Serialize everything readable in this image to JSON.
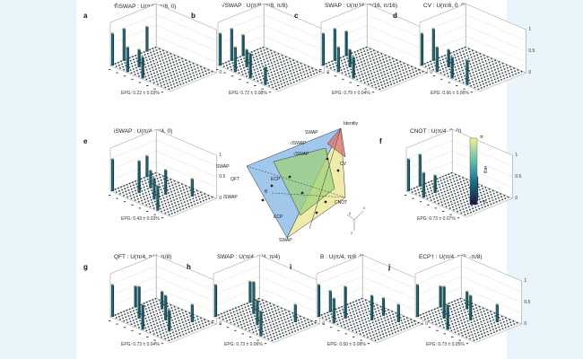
{
  "panels": [
    {
      "id": "a",
      "title": "∜iSWAP : U",
      "params": "(π/8, π/8, 0)",
      "epg": "EPG: 0.22 ± 0.03%",
      "peaks": [
        [
          0,
          0
        ],
        [
          0,
          1
        ],
        [
          1,
          0
        ],
        [
          1,
          1
        ],
        [
          2,
          0
        ],
        [
          0,
          3
        ]
      ]
    },
    {
      "id": "b",
      "title": "√SWAP : U",
      "params": "(π/8, π/8, π/8)",
      "epg": "EPG: 0.72 ± 0.08%",
      "peaks": [
        [
          0,
          0
        ],
        [
          0,
          1
        ],
        [
          1,
          0
        ],
        [
          1,
          1
        ],
        [
          0,
          2
        ],
        [
          2,
          0
        ],
        [
          3,
          0
        ]
      ]
    },
    {
      "id": "c",
      "title": "SWAP : U",
      "params": "(π/16, π/16, π/16)",
      "epg": "EPG: 0.79 ± 0.04%",
      "peaks": [
        [
          0,
          0
        ],
        [
          0,
          1
        ],
        [
          1,
          0
        ],
        [
          1,
          1
        ],
        [
          2,
          0
        ],
        [
          0,
          2
        ]
      ]
    },
    {
      "id": "d",
      "title": "CV : U",
      "params": "(π/8, 0, 0)",
      "epg": "EPG: 0.66 ± 0.06%",
      "peaks": [
        [
          0,
          0
        ],
        [
          0,
          1
        ],
        [
          1,
          0
        ],
        [
          1,
          1
        ],
        [
          2,
          0
        ],
        [
          3,
          0
        ]
      ]
    },
    {
      "id": "e",
      "title": "iSWAP : U",
      "params": "(π/4, π/4, 0)",
      "epg": "EPG: 0.43 ± 0.03%",
      "peaks": [
        [
          0,
          0
        ],
        [
          1,
          1
        ],
        [
          2,
          2
        ],
        [
          3,
          3
        ],
        [
          0,
          3
        ],
        [
          3,
          0
        ],
        [
          1,
          2
        ],
        [
          2,
          1
        ]
      ]
    },
    {
      "id": "f",
      "title": "CNOT : U",
      "params": "(π/4, 0, 0)",
      "epg": "EPG: 0.73 ± 0.07%",
      "peaks": [
        [
          0,
          0
        ],
        [
          0,
          1
        ],
        [
          1,
          0
        ],
        [
          1,
          1
        ],
        [
          2,
          3
        ],
        [
          3,
          2
        ]
      ]
    },
    {
      "id": "g",
      "title": "QFT : U",
      "params": "(π/4, π/4, π/8)",
      "epg": "EPG: 0.73 ± 0.04%",
      "peaks": [
        [
          0,
          0
        ],
        [
          1,
          1
        ],
        [
          2,
          2
        ],
        [
          3,
          3
        ],
        [
          0,
          2
        ],
        [
          2,
          0
        ],
        [
          1,
          3
        ],
        [
          3,
          1
        ]
      ]
    },
    {
      "id": "h",
      "title": "SWAP : U",
      "params": "(π/4, π/4, π/4)",
      "epg": "EPG: 0.73 ± 0.06%",
      "peaks": [
        [
          0,
          0
        ],
        [
          1,
          2
        ],
        [
          2,
          1
        ],
        [
          3,
          3
        ],
        [
          0,
          3
        ],
        [
          3,
          0
        ]
      ]
    },
    {
      "id": "i",
      "title": "B : U",
      "params": "(π/4, π/8, 0)",
      "epg": "EPG: 0.50 ± 0.08%",
      "peaks": [
        [
          0,
          0
        ],
        [
          1,
          1
        ],
        [
          2,
          2
        ],
        [
          3,
          3
        ],
        [
          0,
          1
        ],
        [
          1,
          0
        ],
        [
          2,
          3
        ]
      ]
    },
    {
      "id": "j",
      "title": "ECP† : U",
      "params": "(π/4, π/8, -π/8)",
      "epg": "EPG: 0.73 ± 0.05%",
      "peaks": [
        [
          0,
          0
        ],
        [
          1,
          1
        ],
        [
          2,
          2
        ],
        [
          3,
          3
        ],
        [
          0,
          2
        ],
        [
          2,
          0
        ],
        [
          1,
          3
        ]
      ]
    }
  ],
  "zticks": [
    "1",
    "0.5",
    "0"
  ],
  "colorbar": {
    "top": "π",
    "bottom": "−π",
    "label": "arg"
  },
  "tetrahedron": {
    "labels": [
      "SWAP",
      "Identity",
      "SWAP",
      "√iSWAP",
      "√SWAP",
      "QFT",
      "ECP",
      "iSWAP",
      "B",
      "CV",
      "CNOT",
      "ECP",
      "SWAP"
    ],
    "axes": [
      "x",
      "y",
      "z"
    ]
  },
  "colors": {
    "bar": "#1f5f6b",
    "bar_light": "#c2c88b",
    "grid": "#999999",
    "accent": "#7fb0d8"
  }
}
